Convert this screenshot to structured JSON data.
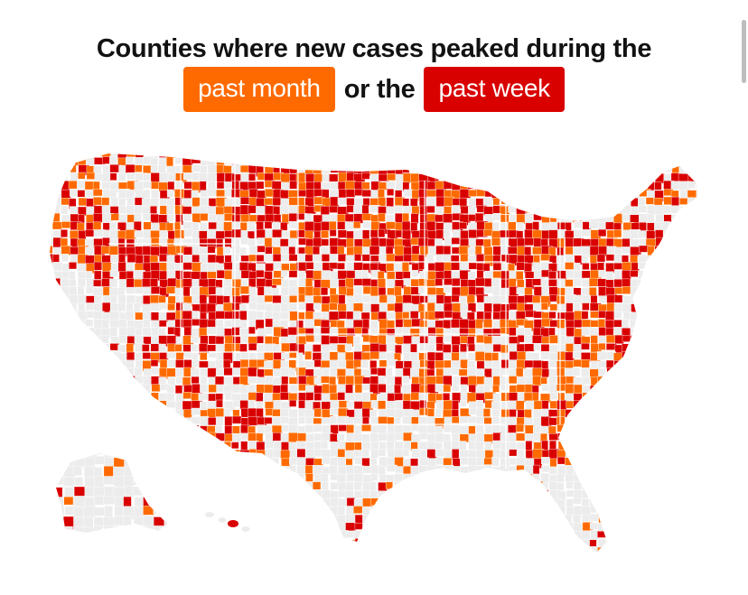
{
  "title": {
    "line1": "Counties where new cases peaked during the",
    "chip_month": "past month",
    "connector": "or the",
    "chip_week": "past week"
  },
  "colors": {
    "past_month": "#ff6a00",
    "past_week": "#d90000",
    "base": "#ececec",
    "border": "#ffffff"
  },
  "map": {
    "region": "United States counties",
    "categories": [
      "past month",
      "past week"
    ]
  }
}
